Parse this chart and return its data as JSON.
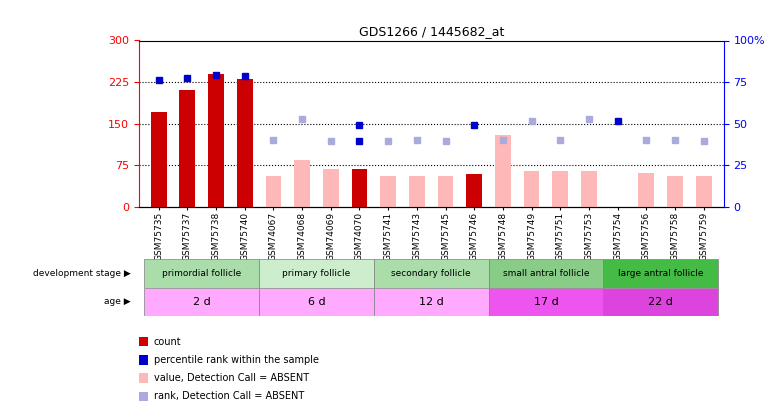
{
  "title": "GDS1266 / 1445682_at",
  "samples": [
    "GSM75735",
    "GSM75737",
    "GSM75738",
    "GSM75740",
    "GSM74067",
    "GSM74068",
    "GSM74069",
    "GSM74070",
    "GSM75741",
    "GSM75743",
    "GSM75745",
    "GSM75746",
    "GSM75748",
    "GSM75749",
    "GSM75751",
    "GSM75753",
    "GSM75754",
    "GSM75756",
    "GSM75758",
    "GSM75759"
  ],
  "count_values": [
    170,
    210,
    240,
    230,
    null,
    null,
    null,
    68,
    null,
    null,
    null,
    58,
    null,
    null,
    null,
    null,
    null,
    null,
    null,
    null
  ],
  "count_absent_values": [
    null,
    null,
    null,
    null,
    55,
    85,
    68,
    null,
    55,
    55,
    55,
    null,
    130,
    65,
    65,
    65,
    null,
    60,
    55,
    55
  ],
  "rank_values": [
    228,
    232,
    238,
    235,
    null,
    null,
    null,
    148,
    null,
    null,
    null,
    148,
    null,
    null,
    null,
    null,
    null,
    null,
    null,
    null
  ],
  "rank_absent_values": [
    null,
    null,
    null,
    null,
    120,
    158,
    118,
    118,
    118,
    120,
    118,
    null,
    120,
    155,
    120,
    158,
    155,
    120,
    120,
    118
  ],
  "count_dark_red": [
    true,
    true,
    true,
    true,
    false,
    false,
    false,
    true,
    false,
    false,
    false,
    true,
    false,
    false,
    false,
    false,
    true,
    false,
    false,
    false
  ],
  "rank_dark_blue": [
    true,
    true,
    true,
    true,
    false,
    false,
    false,
    true,
    false,
    false,
    false,
    true,
    false,
    false,
    false,
    false,
    true,
    false,
    false,
    false
  ],
  "ylim_left": [
    0,
    300
  ],
  "ylim_right": [
    0,
    100
  ],
  "yticks_left": [
    0,
    75,
    150,
    225,
    300
  ],
  "yticks_right": [
    0,
    25,
    50,
    75,
    100
  ],
  "color_dark_red": "#cc0000",
  "color_light_pink": "#ffb8b8",
  "color_dark_blue": "#0000cc",
  "color_light_blue": "#aaaadd",
  "groups": [
    {
      "label": "primordial follicle",
      "start": 0,
      "end": 3,
      "color": "#aaddaa"
    },
    {
      "label": "primary follicle",
      "start": 4,
      "end": 7,
      "color": "#cceecc"
    },
    {
      "label": "secondary follicle",
      "start": 8,
      "end": 11,
      "color": "#aaddaa"
    },
    {
      "label": "small antral follicle",
      "start": 12,
      "end": 15,
      "color": "#88cc88"
    },
    {
      "label": "large antral follicle",
      "start": 16,
      "end": 19,
      "color": "#44bb44"
    }
  ],
  "ages": [
    {
      "label": "2 d",
      "start": 0,
      "end": 3,
      "color": "#ffaaff"
    },
    {
      "label": "6 d",
      "start": 4,
      "end": 7,
      "color": "#ffaaff"
    },
    {
      "label": "12 d",
      "start": 8,
      "end": 11,
      "color": "#ffaaff"
    },
    {
      "label": "17 d",
      "start": 12,
      "end": 15,
      "color": "#ee55ee"
    },
    {
      "label": "22 d",
      "start": 16,
      "end": 19,
      "color": "#dd44dd"
    }
  ]
}
